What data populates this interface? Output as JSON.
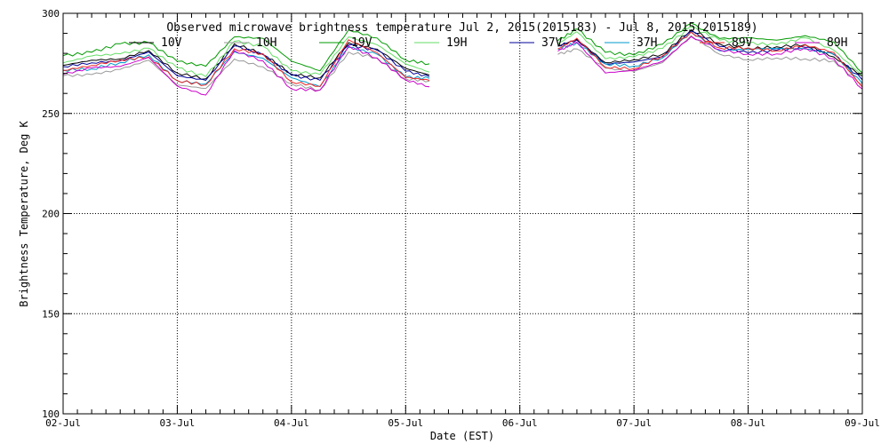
{
  "chart_data": {
    "type": "line",
    "title": "Observed microwave brightness temperature Jul  2, 2015(2015183) - Jul  8, 2015(2015189)",
    "xlabel": "Date (EST)",
    "ylabel": "Brightness Temperature, Deg K",
    "ylim": [
      100,
      300
    ],
    "xlim": [
      "2015-07-02",
      "2015-07-09"
    ],
    "grid": true,
    "legend": "top",
    "x_ticks": [
      "02-Jul",
      "03-Jul",
      "04-Jul",
      "05-Jul",
      "06-Jul",
      "07-Jul",
      "08-Jul",
      "09-Jul"
    ],
    "y_ticks": [
      100,
      150,
      200,
      250,
      300
    ],
    "x": [
      "2015-07-02 00:00",
      "2015-07-02 06:00",
      "2015-07-02 12:00",
      "2015-07-02 18:00",
      "2015-07-03 00:00",
      "2015-07-03 06:00",
      "2015-07-03 12:00",
      "2015-07-03 18:00",
      "2015-07-04 00:00",
      "2015-07-04 06:00",
      "2015-07-04 12:00",
      "2015-07-04 18:00",
      "2015-07-05 00:00",
      "2015-07-05 05:00",
      "2015-07-06 08:00",
      "2015-07-06 12:00",
      "2015-07-06 18:00",
      "2015-07-07 00:00",
      "2015-07-07 06:00",
      "2015-07-07 12:00",
      "2015-07-07 18:00",
      "2015-07-08 00:00",
      "2015-07-08 06:00",
      "2015-07-08 12:00",
      "2015-07-08 18:00",
      "2015-07-09 00:00"
    ],
    "series": [
      {
        "name": "10V",
        "color": "#000000",
        "values": [
          274,
          276,
          278,
          281,
          270,
          268,
          284,
          280,
          270,
          267,
          286,
          282,
          272,
          270,
          283,
          287,
          276,
          276,
          280,
          292,
          284,
          283,
          283,
          284,
          279,
          268
        ]
      },
      {
        "name": "10H",
        "color": "#999999",
        "values": [
          268,
          270,
          272,
          276,
          265,
          262,
          277,
          274,
          264,
          262,
          281,
          277,
          268,
          266,
          279,
          283,
          272,
          271,
          276,
          288,
          280,
          277,
          277,
          278,
          276,
          264
        ]
      },
      {
        "name": "19V",
        "color": "#009900",
        "values": [
          279,
          281,
          284,
          286,
          276,
          273,
          289,
          287,
          276,
          272,
          291,
          288,
          277,
          274,
          287,
          292,
          280,
          280,
          284,
          295,
          288,
          287,
          287,
          289,
          285,
          271
        ]
      },
      {
        "name": "19H",
        "color": "#66dd66",
        "values": [
          276,
          278,
          280,
          283,
          272,
          269,
          286,
          283,
          272,
          269,
          288,
          285,
          274,
          271,
          285,
          290,
          278,
          278,
          282,
          294,
          286,
          285,
          285,
          287,
          282,
          269
        ]
      },
      {
        "name": "37V",
        "color": "#000099",
        "values": [
          273,
          275,
          277,
          280,
          269,
          267,
          283,
          280,
          269,
          266,
          285,
          281,
          271,
          269,
          283,
          287,
          275,
          275,
          279,
          291,
          283,
          281,
          281,
          283,
          280,
          266
        ]
      },
      {
        "name": "37H",
        "color": "#0099cc",
        "values": [
          271,
          273,
          275,
          279,
          267,
          264,
          281,
          278,
          267,
          264,
          283,
          279,
          269,
          267,
          282,
          286,
          274,
          274,
          278,
          290,
          282,
          282,
          282,
          283,
          279,
          265
        ]
      },
      {
        "name": "89V",
        "color": "#ee2222",
        "values": [
          272,
          274,
          276,
          279,
          266,
          264,
          283,
          279,
          266,
          264,
          286,
          281,
          268,
          266,
          283,
          287,
          273,
          273,
          278,
          291,
          283,
          282,
          282,
          284,
          280,
          264
        ]
      },
      {
        "name": "89H",
        "color": "#cc00cc",
        "values": [
          270,
          272,
          274,
          278,
          263,
          260,
          281,
          276,
          263,
          261,
          284,
          278,
          266,
          264,
          281,
          285,
          271,
          271,
          276,
          289,
          281,
          280,
          280,
          282,
          278,
          262
        ]
      }
    ]
  }
}
